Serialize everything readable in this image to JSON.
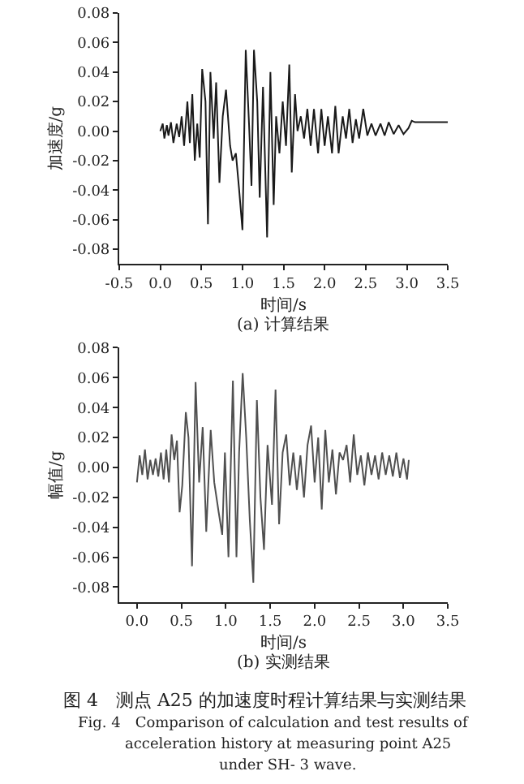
{
  "chart_data": [
    {
      "type": "line",
      "title": "(a) 计算结果",
      "xlabel": "时间/s",
      "ylabel": "加速度/g",
      "marker": "none",
      "line_style": "solid",
      "xlim": [
        -0.5,
        3.5
      ],
      "xticks": [
        {
          "value": -0.5,
          "label": "-0.5"
        },
        {
          "value": 0,
          "label": "0.0"
        },
        0.5,
        {
          "value": 1,
          "label": "1.0"
        },
        1.5,
        {
          "value": 2,
          "label": "2.0"
        },
        2.5,
        {
          "value": 3,
          "label": "3.0"
        },
        3.5
      ],
      "ylim": [
        -0.09,
        0.08
      ],
      "yticks": [
        -0.08,
        -0.06,
        -0.04,
        -0.02,
        {
          "value": 0,
          "label": "0.00"
        },
        0.02,
        0.04,
        0.06,
        0.08
      ],
      "series": [
        {
          "color": "#1a1a1a",
          "x": [
            0.0,
            0.03,
            0.05,
            0.08,
            0.1,
            0.13,
            0.16,
            0.2,
            0.23,
            0.26,
            0.29,
            0.33,
            0.36,
            0.39,
            0.42,
            0.45,
            0.48,
            0.51,
            0.55,
            0.58,
            0.61,
            0.65,
            0.68,
            0.72,
            0.76,
            0.8,
            0.85,
            0.88,
            0.92,
            0.96,
            1.0,
            1.04,
            1.08,
            1.11,
            1.14,
            1.18,
            1.21,
            1.25,
            1.3,
            1.34,
            1.38,
            1.41,
            1.45,
            1.49,
            1.53,
            1.57,
            1.6,
            1.64,
            1.67,
            1.71,
            1.75,
            1.79,
            1.83,
            1.87,
            1.92,
            1.96,
            2.0,
            2.04,
            2.09,
            2.13,
            2.17,
            2.22,
            2.26,
            2.3,
            2.34,
            2.38,
            2.42,
            2.47,
            2.52,
            2.57,
            2.62,
            2.68,
            2.73,
            2.78,
            2.84,
            2.9,
            2.96,
            3.02,
            3.06,
            3.1,
            3.5
          ],
          "values": [
            0.0,
            0.005,
            -0.005,
            0.004,
            -0.003,
            0.006,
            -0.008,
            0.005,
            -0.004,
            0.01,
            -0.01,
            0.02,
            -0.008,
            0.025,
            -0.02,
            0.005,
            -0.018,
            0.042,
            0.02,
            -0.063,
            0.04,
            -0.005,
            0.033,
            -0.035,
            0.01,
            0.028,
            -0.01,
            -0.02,
            -0.015,
            -0.04,
            -0.067,
            0.055,
            0.005,
            -0.037,
            0.055,
            0.02,
            -0.045,
            0.03,
            -0.072,
            0.04,
            -0.05,
            0.01,
            -0.015,
            0.02,
            -0.01,
            0.045,
            -0.028,
            0.025,
            0.0,
            0.01,
            -0.005,
            0.015,
            -0.01,
            0.015,
            -0.015,
            0.015,
            -0.01,
            0.01,
            -0.015,
            0.017,
            -0.015,
            0.01,
            -0.005,
            0.015,
            -0.008,
            0.008,
            -0.005,
            0.015,
            -0.003,
            0.005,
            -0.003,
            0.005,
            -0.003,
            0.006,
            -0.002,
            0.004,
            -0.002,
            0.002,
            0.007,
            0.006,
            0.006
          ]
        }
      ]
    },
    {
      "type": "line",
      "title": "(b) 实测结果",
      "xlabel": "时间/s",
      "ylabel": "幅值/g",
      "marker": "none",
      "line_style": "solid",
      "xlim": [
        -0.2,
        3.5
      ],
      "xticks": [
        {
          "value": 0,
          "label": "0.0"
        },
        0.5,
        {
          "value": 1,
          "label": "1.0"
        },
        1.5,
        {
          "value": 2,
          "label": "2.0"
        },
        2.5,
        {
          "value": 3,
          "label": "3.0"
        },
        3.5
      ],
      "ylim": [
        -0.09,
        0.08
      ],
      "yticks": [
        -0.08,
        -0.06,
        -0.04,
        -0.02,
        {
          "value": 0,
          "label": "0.00"
        },
        0.02,
        0.04,
        0.06,
        0.08
      ],
      "annotations": [
        "图 4　测点 A25 的加速度时程计算结果与实测结果",
        "Fig. 4　Comparison of calculation and test results of",
        "acceleration history at measuring point A25",
        "under SH- 3 wave."
      ],
      "series": [
        {
          "color": "#505050",
          "x": [
            0.0,
            0.03,
            0.06,
            0.09,
            0.12,
            0.15,
            0.18,
            0.21,
            0.24,
            0.27,
            0.3,
            0.33,
            0.36,
            0.39,
            0.42,
            0.45,
            0.48,
            0.51,
            0.55,
            0.58,
            0.62,
            0.66,
            0.7,
            0.74,
            0.78,
            0.83,
            0.87,
            0.92,
            0.96,
            0.99,
            1.03,
            1.08,
            1.12,
            1.15,
            1.19,
            1.23,
            1.27,
            1.31,
            1.35,
            1.39,
            1.43,
            1.47,
            1.52,
            1.56,
            1.6,
            1.64,
            1.68,
            1.72,
            1.76,
            1.8,
            1.84,
            1.88,
            1.92,
            1.96,
            2.0,
            2.04,
            2.08,
            2.12,
            2.16,
            2.2,
            2.24,
            2.28,
            2.32,
            2.36,
            2.4,
            2.44,
            2.48,
            2.52,
            2.56,
            2.6,
            2.64,
            2.68,
            2.72,
            2.76,
            2.8,
            2.84,
            2.88,
            2.92,
            2.96,
            3.0,
            3.04,
            3.06
          ],
          "values": [
            -0.01,
            0.008,
            -0.005,
            0.012,
            -0.008,
            0.005,
            -0.005,
            0.006,
            -0.006,
            0.01,
            -0.008,
            0.012,
            -0.01,
            0.022,
            0.005,
            0.018,
            -0.03,
            -0.012,
            0.037,
            0.02,
            -0.066,
            0.057,
            -0.01,
            0.027,
            -0.043,
            0.025,
            -0.01,
            -0.03,
            -0.045,
            0.01,
            -0.06,
            0.058,
            -0.06,
            0.01,
            0.063,
            0.02,
            -0.035,
            -0.077,
            0.045,
            -0.02,
            -0.055,
            0.015,
            -0.025,
            0.052,
            -0.038,
            0.01,
            0.022,
            -0.012,
            0.01,
            -0.015,
            0.008,
            -0.02,
            0.015,
            0.028,
            -0.01,
            0.02,
            -0.028,
            0.025,
            -0.01,
            0.012,
            -0.018,
            0.01,
            0.005,
            0.015,
            -0.01,
            0.022,
            -0.005,
            0.008,
            -0.012,
            0.01,
            -0.005,
            0.008,
            -0.008,
            0.01,
            -0.005,
            0.008,
            -0.006,
            0.01,
            -0.007,
            0.006,
            -0.008,
            0.005
          ]
        }
      ]
    }
  ]
}
